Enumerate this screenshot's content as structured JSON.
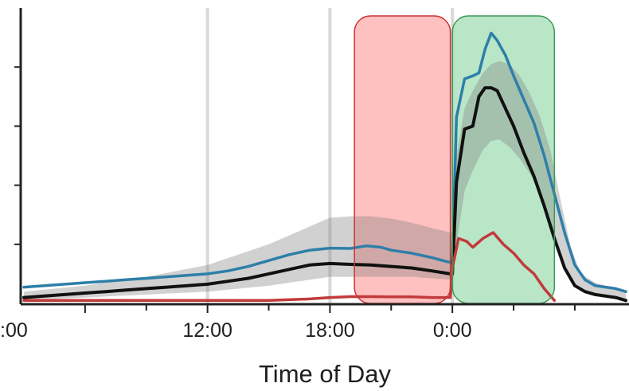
{
  "chart_data": {
    "type": "area",
    "title": "",
    "xlabel": "Time of Day",
    "ylabel": "",
    "x_unit": "hours (0:00 = midnight; values past 24 are the following day)",
    "xlim": [
      3,
      32.5
    ],
    "ylim": [
      0,
      100
    ],
    "y_ticks": [
      20,
      40,
      60,
      80
    ],
    "y_tick_labels_visible": false,
    "x_ticks": [
      {
        "x": 6,
        "label": ":00"
      },
      {
        "x": 12,
        "label": "12:00"
      },
      {
        "x": 18,
        "label": "18:00"
      },
      {
        "x": 24,
        "label": "0:00"
      }
    ],
    "x_minor_ticks": [
      9,
      15,
      21,
      27,
      30
    ],
    "vertical_gridlines": [
      12,
      18,
      24
    ],
    "grid": "vertical lines only",
    "legend": "none",
    "highlight_regions": [
      {
        "name": "red-region",
        "x_start": 19.2,
        "x_end": 23.9,
        "fill": "#ff9999",
        "stroke": "#cc3333"
      },
      {
        "name": "green-region",
        "x_start": 24.0,
        "x_end": 29.0,
        "fill": "#8fd6a6",
        "stroke": "#3a9a55"
      }
    ],
    "band": {
      "name": "shaded-range",
      "x": [
        3,
        6,
        9,
        12,
        15,
        17,
        18,
        19,
        20,
        21,
        22,
        23,
        23.9,
        24.0,
        24.2,
        24.6,
        25.0,
        25.5,
        25.9,
        26.3,
        26.8,
        27.3,
        27.8,
        28.3,
        28.8,
        29.3,
        29.8,
        30.3,
        31,
        32,
        32.5
      ],
      "upper": [
        4,
        6,
        9,
        13,
        20,
        26,
        29,
        29.5,
        29.5,
        28.7,
        27.3,
        25.5,
        24,
        24,
        50,
        66,
        72,
        78,
        81,
        82,
        81,
        77,
        71,
        63,
        52,
        35,
        19,
        10,
        7,
        5,
        4
      ],
      "lower": [
        1,
        2,
        3,
        4,
        6,
        8,
        9,
        9,
        9,
        9,
        9,
        8.5,
        8,
        8,
        20,
        38,
        45,
        52,
        55,
        55.5,
        53,
        49,
        44,
        37,
        28,
        17,
        8,
        4,
        2.5,
        1.5,
        1
      ]
    },
    "series": [
      {
        "name": "",
        "role": "upper",
        "color": "#2e7fa8",
        "x": [
          3,
          4,
          5,
          6,
          7,
          8,
          9,
          10,
          11,
          12,
          13,
          14,
          15,
          16,
          17,
          18,
          19,
          19.8,
          20.5,
          21,
          22,
          23,
          23.8,
          24.0,
          24.2,
          24.6,
          25.0,
          25.3,
          25.6,
          25.9,
          26.2,
          26.6,
          27.0,
          27.5,
          28.0,
          28.5,
          29.0,
          29.5,
          30.0,
          30.5,
          31,
          32,
          32.5
        ],
        "y": [
          5.5,
          6,
          6.5,
          7,
          7.5,
          8,
          8.5,
          9,
          9.5,
          10,
          11,
          12.5,
          14.5,
          16.5,
          18,
          18.7,
          18.6,
          19.5,
          19,
          18,
          17,
          15.5,
          14,
          14,
          63,
          76,
          77,
          78,
          86,
          91.5,
          89,
          84,
          77,
          69,
          61,
          50,
          37,
          24,
          13,
          8,
          6,
          5,
          4
        ]
      },
      {
        "name": "",
        "role": "median",
        "color": "#111111",
        "x": [
          3,
          4,
          5,
          6,
          7,
          8,
          9,
          10,
          11,
          12,
          13,
          14,
          15,
          16,
          17,
          18,
          19,
          20,
          21,
          22,
          23,
          23.9,
          24.0,
          24.2,
          24.6,
          25.0,
          25.3,
          25.6,
          25.9,
          26.2,
          26.6,
          27.0,
          27.5,
          28.0,
          28.5,
          29.0,
          29.5,
          30.0,
          30.5,
          31,
          32,
          32.5
        ],
        "y": [
          2,
          2.5,
          3,
          3.5,
          4,
          4.5,
          5,
          5.5,
          6,
          6.5,
          7.5,
          8.5,
          10,
          11.5,
          13,
          13.5,
          13.2,
          13,
          12.5,
          12,
          11,
          10,
          10,
          41,
          59,
          60,
          70,
          73,
          73,
          72,
          66,
          60,
          51,
          43,
          33,
          22,
          12,
          6,
          4,
          3,
          2,
          1
        ]
      },
      {
        "name": "",
        "role": "lower",
        "color": "#c13b3b",
        "x": [
          3,
          6,
          9,
          12,
          15,
          17,
          18,
          19,
          20,
          21,
          22,
          23,
          23.9,
          24.0,
          24.3,
          24.7,
          25.0,
          25.5,
          26.0,
          26.5,
          27.0,
          27.5,
          28.0,
          28.5,
          29.0
        ],
        "y": [
          1,
          1,
          1,
          1,
          1,
          1.5,
          2,
          2.3,
          2.3,
          2.2,
          2.2,
          2.0,
          2.0,
          12,
          22,
          21,
          19,
          22,
          24,
          20,
          17,
          13,
          10,
          5,
          1
        ]
      }
    ]
  }
}
